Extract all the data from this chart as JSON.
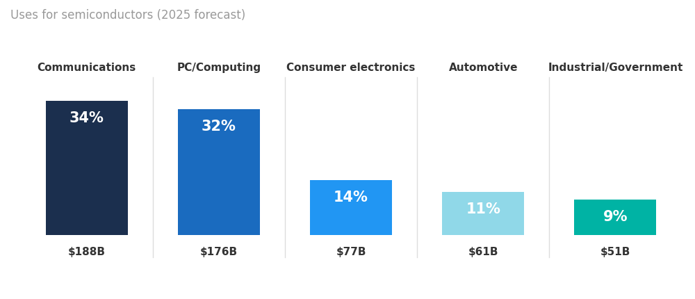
{
  "title": "Uses for semiconductors (2025 forecast)",
  "categories": [
    "Communications",
    "PC/Computing",
    "Consumer electronics",
    "Automotive",
    "Industrial/Government"
  ],
  "values": [
    34,
    32,
    14,
    11,
    9
  ],
  "dollar_labels": [
    "$188B",
    "$176B",
    "$77B",
    "$61B",
    "$51B"
  ],
  "percent_labels": [
    "34%",
    "32%",
    "14%",
    "11%",
    "9%"
  ],
  "bar_colors": [
    "#1b2f4e",
    "#1a6bbf",
    "#2196f3",
    "#90d8e8",
    "#00b3a4"
  ],
  "background_color": "#ffffff",
  "title_color": "#999999",
  "category_color": "#333333",
  "dollar_color": "#333333",
  "title_fontsize": 12,
  "category_fontsize": 11,
  "percent_fontsize": 15,
  "dollar_fontsize": 11,
  "bar_width": 0.62,
  "max_bar_height": 34,
  "divider_color": "#dddddd"
}
